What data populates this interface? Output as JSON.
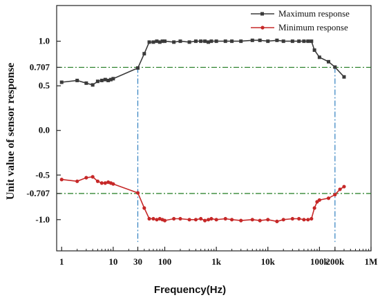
{
  "chart_data": {
    "type": "line",
    "xlabel": "Frequency(Hz)",
    "ylabel": "Unit value of sensor response",
    "x_scale": "log",
    "xlim": [
      0.8,
      1000000
    ],
    "ylim": [
      -1.35,
      1.4
    ],
    "x_ticks": [
      {
        "value": 1,
        "label": "1"
      },
      {
        "value": 10,
        "label": "10"
      },
      {
        "value": 30,
        "label": "30"
      },
      {
        "value": 100,
        "label": "100"
      },
      {
        "value": 1000,
        "label": "1k"
      },
      {
        "value": 10000,
        "label": "10k"
      },
      {
        "value": 100000,
        "label": "100k"
      },
      {
        "value": 200000,
        "label": "200k"
      },
      {
        "value": 1000000,
        "label": "1M"
      }
    ],
    "y_ticks": [
      {
        "value": 1.0,
        "label": "1.0"
      },
      {
        "value": 0.707,
        "label": "0.707"
      },
      {
        "value": 0.5,
        "label": "0.5"
      },
      {
        "value": 0.0,
        "label": "0.0"
      },
      {
        "value": -0.5,
        "label": "-0.5"
      },
      {
        "value": -0.707,
        "label": "-0.707"
      },
      {
        "value": -1.0,
        "label": "-1.0"
      }
    ],
    "reference_lines": {
      "horizontal": [
        0.707,
        -0.707
      ],
      "vertical": [
        30,
        200000
      ],
      "horizontal_color": "#1f7a1f",
      "vertical_color": "#2f7fbf"
    },
    "legend_position": "top-right",
    "series": [
      {
        "name": "Maximum response",
        "color": "#3a3a3a",
        "marker": "square",
        "x": [
          1,
          2,
          3,
          4,
          5,
          6,
          7,
          8,
          9,
          10,
          30,
          40,
          50,
          60,
          70,
          80,
          90,
          100,
          150,
          200,
          300,
          400,
          500,
          600,
          700,
          800,
          1000,
          1500,
          2000,
          3000,
          5000,
          7000,
          10000,
          15000,
          20000,
          30000,
          40000,
          50000,
          60000,
          70000,
          80000,
          100000,
          150000,
          200000,
          300000
        ],
        "values": [
          0.54,
          0.56,
          0.53,
          0.51,
          0.55,
          0.56,
          0.57,
          0.56,
          0.57,
          0.58,
          0.7,
          0.86,
          0.99,
          0.99,
          1.0,
          0.99,
          1.0,
          1.0,
          0.99,
          1.0,
          0.99,
          1.0,
          1.0,
          1.0,
          0.99,
          1.0,
          1.0,
          1.0,
          1.0,
          1.0,
          1.01,
          1.01,
          1.0,
          1.01,
          1.0,
          1.0,
          1.0,
          1.0,
          1.0,
          1.0,
          0.9,
          0.82,
          0.77,
          0.71,
          0.6
        ],
        "ref_x": [
          30,
          200000
        ]
      },
      {
        "name": "Minimum response",
        "color": "#c62828",
        "marker": "circle",
        "x": [
          1,
          2,
          3,
          4,
          5,
          6,
          7,
          8,
          9,
          10,
          30,
          40,
          50,
          60,
          70,
          80,
          90,
          100,
          150,
          200,
          300,
          400,
          500,
          600,
          700,
          800,
          1000,
          1500,
          2000,
          3000,
          5000,
          7000,
          10000,
          15000,
          20000,
          30000,
          40000,
          50000,
          60000,
          70000,
          80000,
          90000,
          100000,
          150000,
          200000,
          250000,
          300000
        ],
        "values": [
          -0.55,
          -0.57,
          -0.53,
          -0.52,
          -0.57,
          -0.59,
          -0.59,
          -0.58,
          -0.59,
          -0.6,
          -0.7,
          -0.87,
          -0.99,
          -0.99,
          -1.0,
          -0.99,
          -1.0,
          -1.01,
          -0.99,
          -0.99,
          -1.0,
          -1.0,
          -0.99,
          -1.01,
          -1.0,
          -0.99,
          -1.0,
          -0.99,
          -1.0,
          -1.01,
          -1.0,
          -1.01,
          -1.0,
          -1.02,
          -1.0,
          -0.99,
          -0.99,
          -1.0,
          -1.0,
          -0.99,
          -0.87,
          -0.8,
          -0.78,
          -0.76,
          -0.72,
          -0.66,
          -0.63
        ],
        "ref_x": [
          30,
          200000
        ]
      }
    ]
  }
}
